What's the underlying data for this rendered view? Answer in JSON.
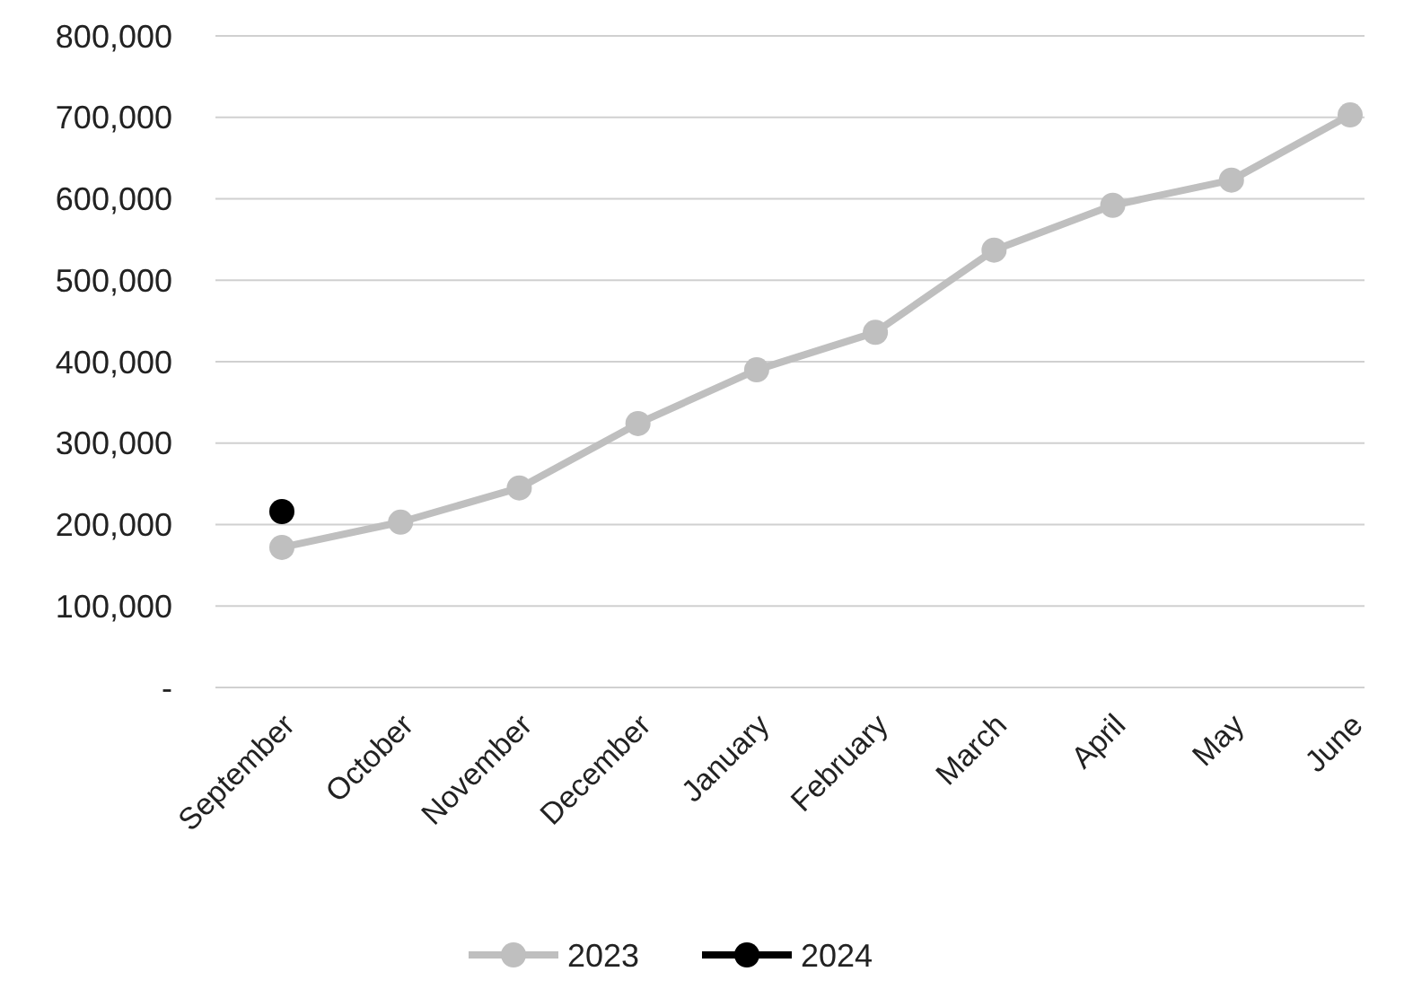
{
  "chart_data": {
    "type": "line",
    "categories": [
      "September",
      "October",
      "November",
      "December",
      "January",
      "February",
      "March",
      "April",
      "May",
      "June"
    ],
    "series": [
      {
        "name": "2023",
        "color": "#bfbfbf",
        "values": [
          172000,
          203000,
          245000,
          324000,
          390000,
          436000,
          537000,
          592000,
          623000,
          703000
        ]
      },
      {
        "name": "2024",
        "color": "#000000",
        "values": [
          216000,
          null,
          null,
          null,
          null,
          null,
          null,
          null,
          null,
          null
        ]
      }
    ],
    "ylim": [
      0,
      800000
    ],
    "yticks": [
      {
        "value": 0,
        "label": "-"
      },
      {
        "value": 100000,
        "label": "100,000"
      },
      {
        "value": 200000,
        "label": "200,000"
      },
      {
        "value": 300000,
        "label": "300,000"
      },
      {
        "value": 400000,
        "label": "400,000"
      },
      {
        "value": 500000,
        "label": "500,000"
      },
      {
        "value": 600000,
        "label": "600,000"
      },
      {
        "value": 700000,
        "label": "700,000"
      },
      {
        "value": 800000,
        "label": "800,000"
      }
    ],
    "grid": "y",
    "legend": "bottom",
    "marker": "circle"
  }
}
